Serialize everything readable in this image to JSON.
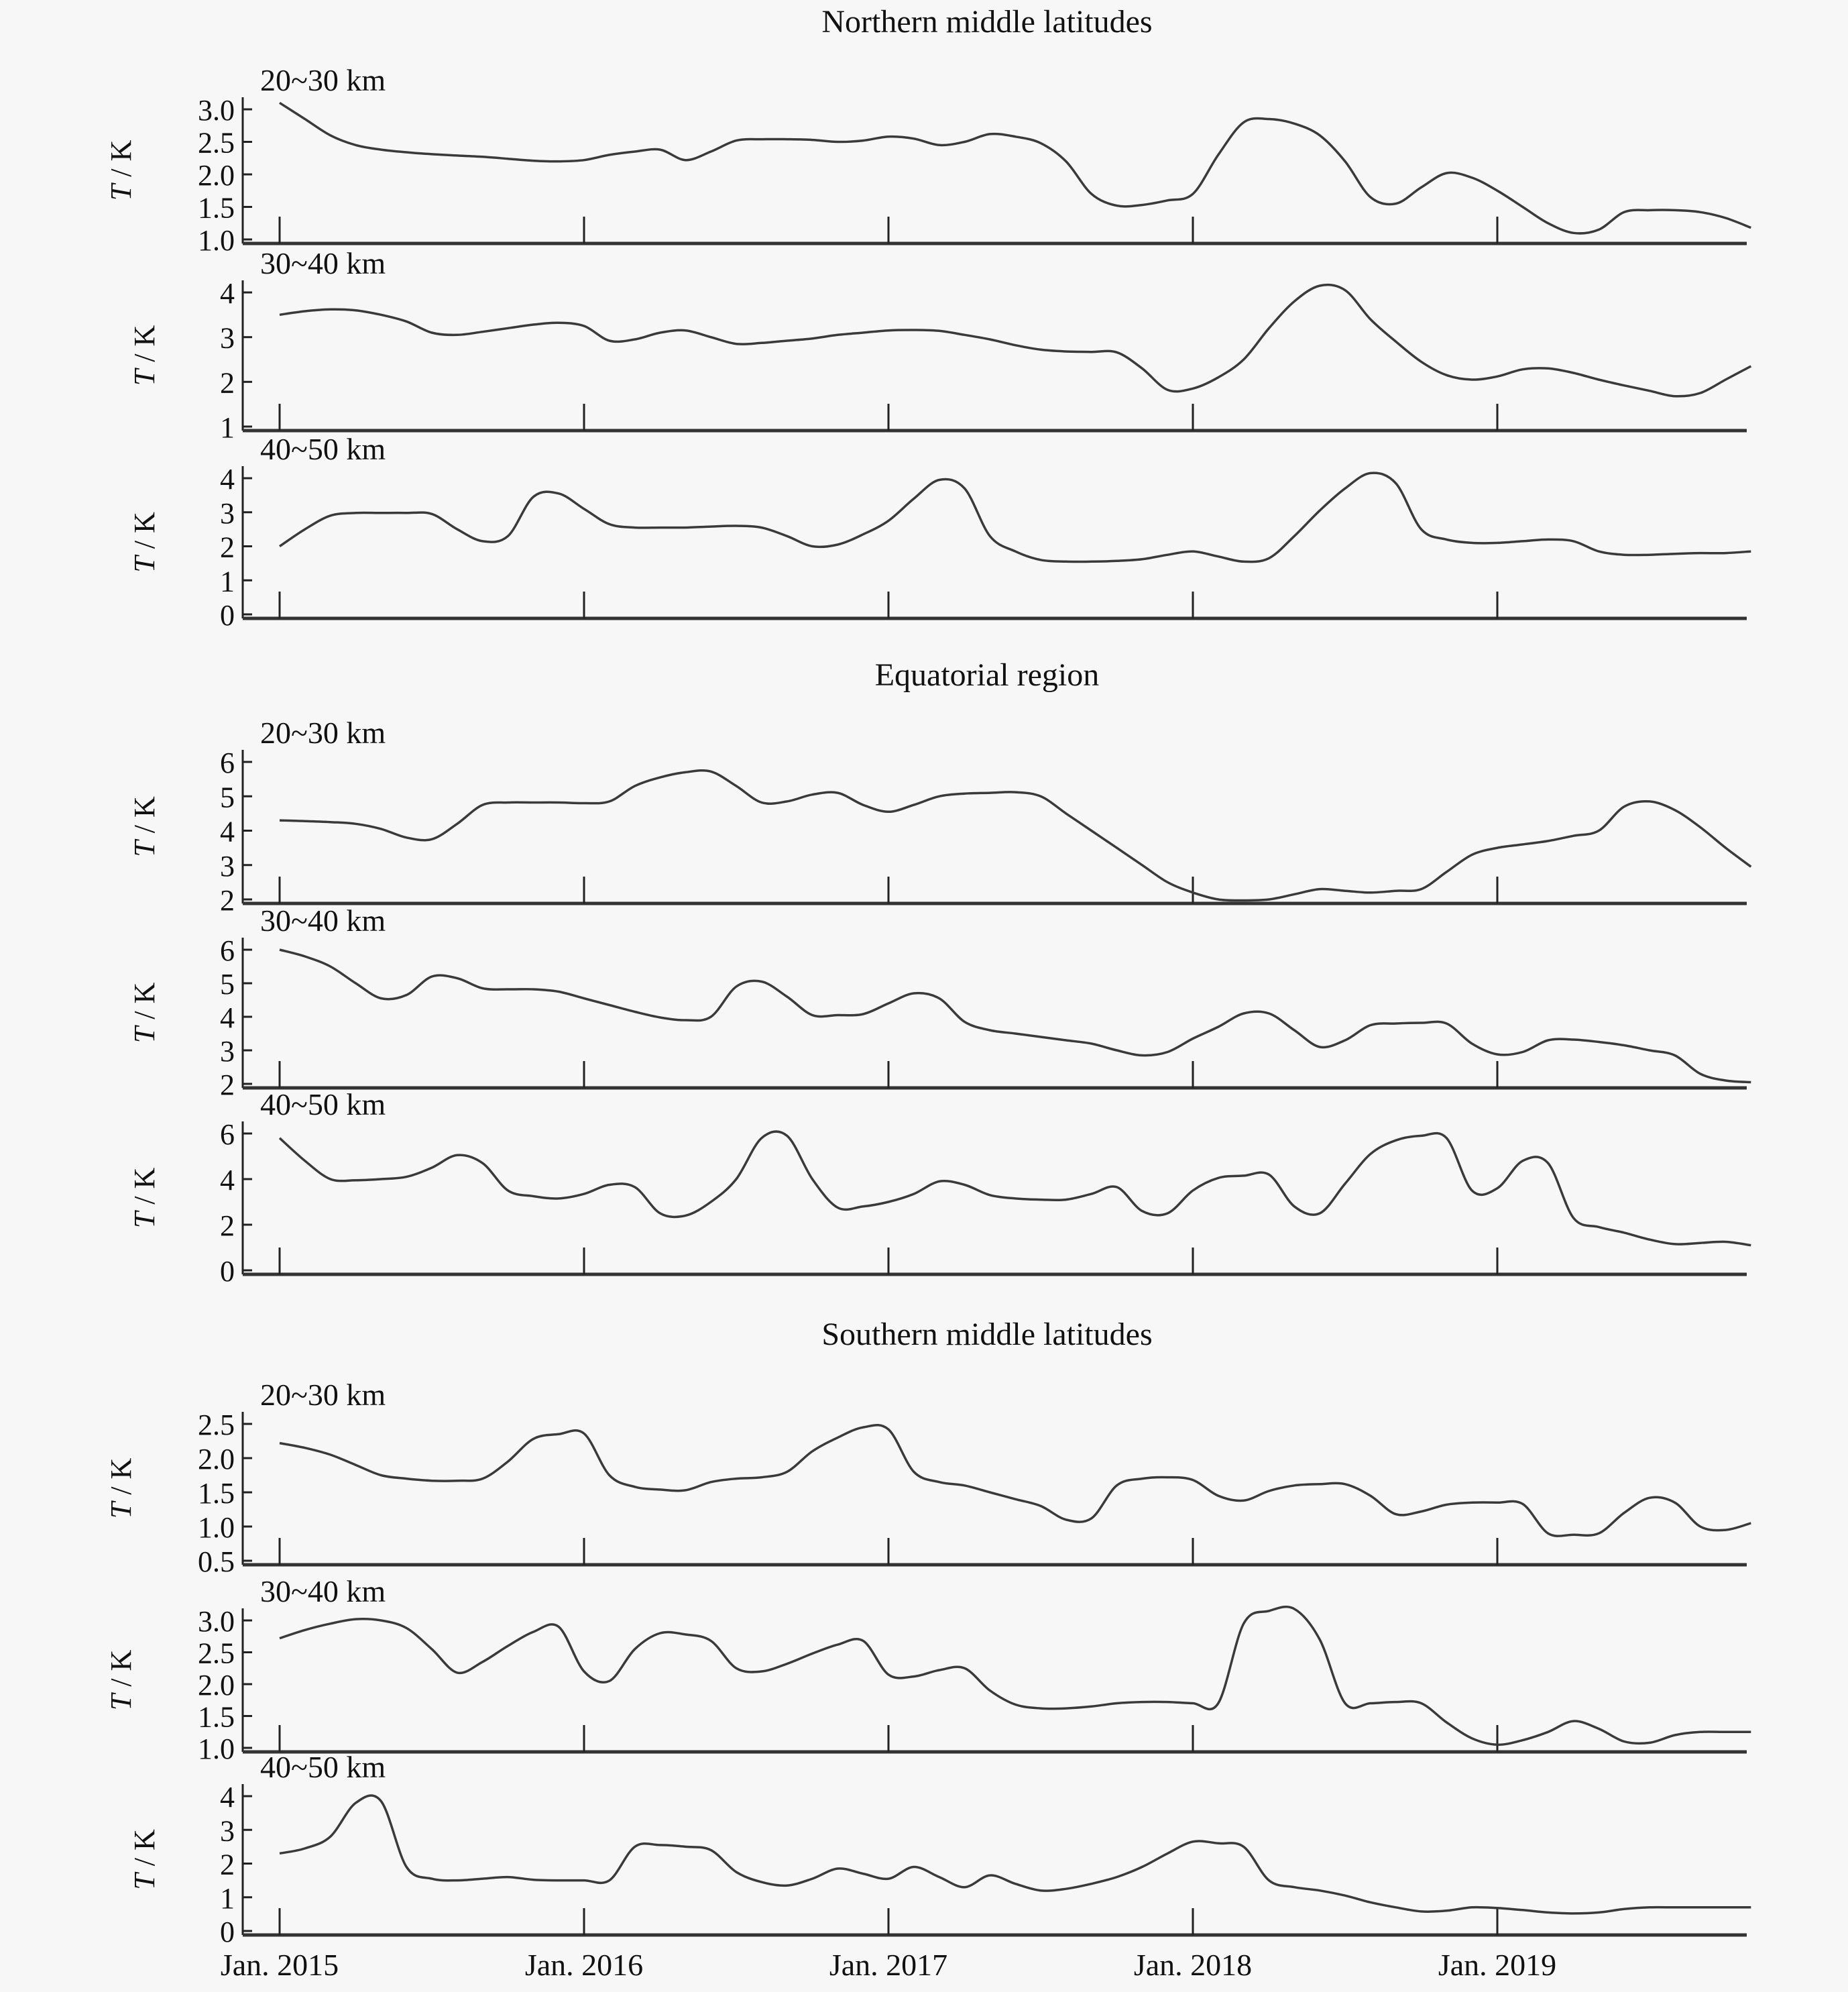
{
  "chart_data": {
    "type": "line",
    "xlabel": "",
    "ylabel": "T / K",
    "x_unit": "months since Jan. 2015",
    "xlim": [
      0,
      58
    ],
    "x_ticks": [
      0,
      12,
      24,
      36,
      48
    ],
    "x_tick_labels": [
      "Jan. 2015",
      "Jan. 2016",
      "Jan. 2017",
      "Jan. 2018",
      "Jan. 2019"
    ],
    "grid": false,
    "legend": "none",
    "sections": [
      {
        "title": "Northern middle latitudes",
        "panels": [
          {
            "label": "20~30 km",
            "ylim": [
              1.0,
              3.0
            ],
            "yticks": [
              1.0,
              1.5,
              2.0,
              2.5,
              3.0
            ],
            "ytick_labels": [
              "1.0",
              "1.5",
              "2.0",
              "2.5",
              "3.0"
            ],
            "values": [
              3.1,
              2.85,
              2.6,
              2.45,
              2.38,
              2.34,
              2.31,
              2.29,
              2.27,
              2.24,
              2.21,
              2.2,
              2.22,
              2.3,
              2.35,
              2.38,
              2.22,
              2.35,
              2.52,
              2.54,
              2.54,
              2.53,
              2.5,
              2.52,
              2.58,
              2.55,
              2.45,
              2.5,
              2.62,
              2.58,
              2.48,
              2.2,
              1.7,
              1.52,
              1.53,
              1.6,
              1.7,
              2.3,
              2.8,
              2.85,
              2.78,
              2.6,
              2.2,
              1.65,
              1.55,
              1.8,
              2.02,
              1.95,
              1.75,
              1.5,
              1.25,
              1.1,
              1.15,
              1.42,
              1.45,
              1.45,
              1.42,
              1.33,
              1.18
            ]
          },
          {
            "label": "30~40 km",
            "ylim": [
              1,
              4
            ],
            "yticks": [
              1,
              2,
              3,
              4
            ],
            "ytick_labels": [
              "1",
              "2",
              "3",
              "4"
            ],
            "values": [
              3.5,
              3.58,
              3.62,
              3.6,
              3.5,
              3.35,
              3.1,
              3.05,
              3.12,
              3.2,
              3.28,
              3.32,
              3.25,
              2.92,
              2.95,
              3.1,
              3.15,
              3.0,
              2.85,
              2.87,
              2.92,
              2.97,
              3.05,
              3.1,
              3.15,
              3.16,
              3.14,
              3.05,
              2.95,
              2.82,
              2.72,
              2.68,
              2.67,
              2.66,
              2.3,
              1.82,
              1.85,
              2.1,
              2.5,
              3.2,
              3.8,
              4.15,
              4.05,
              3.4,
              2.9,
              2.45,
              2.15,
              2.05,
              2.12,
              2.28,
              2.3,
              2.2,
              2.05,
              1.92,
              1.8,
              1.68,
              1.75,
              2.05,
              2.35
            ]
          },
          {
            "label": "40~50 km",
            "ylim": [
              0,
              4
            ],
            "yticks": [
              0,
              1,
              2,
              3,
              4
            ],
            "ytick_labels": [
              "0",
              "1",
              "2",
              "3",
              "4"
            ],
            "values": [
              2.0,
              2.5,
              2.9,
              2.98,
              2.98,
              2.98,
              2.95,
              2.5,
              2.15,
              2.3,
              3.45,
              3.55,
              3.1,
              2.65,
              2.55,
              2.55,
              2.55,
              2.58,
              2.6,
              2.55,
              2.3,
              2.0,
              2.05,
              2.35,
              2.75,
              3.4,
              3.95,
              3.7,
              2.3,
              1.85,
              1.6,
              1.55,
              1.55,
              1.57,
              1.62,
              1.75,
              1.85,
              1.7,
              1.55,
              1.65,
              2.3,
              3.05,
              3.7,
              4.15,
              3.85,
              2.5,
              2.2,
              2.1,
              2.1,
              2.15,
              2.2,
              2.15,
              1.85,
              1.75,
              1.75,
              1.78,
              1.8,
              1.8,
              1.85
            ]
          }
        ]
      },
      {
        "title": "Equatorial region",
        "panels": [
          {
            "label": "20~30 km",
            "ylim": [
              2,
              6
            ],
            "yticks": [
              2,
              3,
              4,
              5,
              6
            ],
            "ytick_labels": [
              "2",
              "3",
              "4",
              "5",
              "6"
            ],
            "values": [
              4.3,
              4.28,
              4.25,
              4.2,
              4.05,
              3.8,
              3.75,
              4.2,
              4.75,
              4.82,
              4.82,
              4.82,
              4.8,
              4.85,
              5.3,
              5.55,
              5.7,
              5.72,
              5.3,
              4.82,
              4.85,
              5.05,
              5.1,
              4.75,
              4.55,
              4.75,
              5.0,
              5.08,
              5.1,
              5.12,
              5.0,
              4.5,
              4.0,
              3.5,
              3.0,
              2.5,
              2.2,
              2.0,
              1.97,
              2.0,
              2.15,
              2.3,
              2.25,
              2.2,
              2.25,
              2.3,
              2.8,
              3.3,
              3.5,
              3.6,
              3.7,
              3.85,
              4.0,
              4.7,
              4.85,
              4.6,
              4.1,
              3.5,
              2.95
            ]
          },
          {
            "label": "30~40 km",
            "ylim": [
              2,
              6
            ],
            "yticks": [
              2,
              3,
              4,
              5,
              6
            ],
            "ytick_labels": [
              "2",
              "3",
              "4",
              "5",
              "6"
            ],
            "values": [
              6.0,
              5.8,
              5.5,
              5.0,
              4.55,
              4.65,
              5.2,
              5.15,
              4.85,
              4.82,
              4.82,
              4.75,
              4.55,
              4.35,
              4.15,
              3.98,
              3.9,
              4.0,
              4.9,
              5.05,
              4.6,
              4.05,
              4.05,
              4.08,
              4.4,
              4.7,
              4.55,
              3.85,
              3.6,
              3.5,
              3.4,
              3.3,
              3.2,
              3.0,
              2.85,
              2.95,
              3.35,
              3.7,
              4.1,
              4.1,
              3.6,
              3.1,
              3.3,
              3.75,
              3.8,
              3.82,
              3.8,
              3.2,
              2.88,
              2.95,
              3.3,
              3.32,
              3.25,
              3.15,
              3.0,
              2.85,
              2.3,
              2.1,
              2.05
            ]
          },
          {
            "label": "40~50 km",
            "ylim": [
              0,
              6
            ],
            "yticks": [
              0,
              2,
              4,
              6
            ],
            "ytick_labels": [
              "0",
              "2",
              "4",
              "6"
            ],
            "values": [
              5.8,
              4.8,
              4.0,
              3.95,
              4.0,
              4.1,
              4.5,
              5.05,
              4.7,
              3.5,
              3.25,
              3.15,
              3.35,
              3.75,
              3.65,
              2.5,
              2.4,
              3.0,
              4.0,
              5.8,
              5.9,
              4.0,
              2.75,
              2.8,
              3.0,
              3.35,
              3.9,
              3.75,
              3.3,
              3.15,
              3.1,
              3.1,
              3.35,
              3.65,
              2.6,
              2.5,
              3.5,
              4.05,
              4.15,
              4.2,
              2.8,
              2.5,
              3.8,
              5.1,
              5.7,
              5.9,
              5.8,
              3.5,
              3.6,
              4.8,
              4.7,
              2.3,
              1.9,
              1.65,
              1.35,
              1.15,
              1.2,
              1.25,
              1.1
            ]
          }
        ]
      },
      {
        "title": "Southern middle latitudes",
        "panels": [
          {
            "label": "20~30 km",
            "ylim": [
              0.5,
              2.5
            ],
            "yticks": [
              0.5,
              1.0,
              1.5,
              2.0,
              2.5
            ],
            "ytick_labels": [
              "0.5",
              "1.0",
              "1.5",
              "2.0",
              "2.5"
            ],
            "values": [
              2.22,
              2.15,
              2.05,
              1.9,
              1.75,
              1.7,
              1.67,
              1.67,
              1.7,
              1.95,
              2.28,
              2.35,
              2.36,
              1.75,
              1.58,
              1.54,
              1.53,
              1.65,
              1.7,
              1.72,
              1.8,
              2.1,
              2.3,
              2.45,
              2.42,
              1.8,
              1.65,
              1.6,
              1.5,
              1.4,
              1.3,
              1.1,
              1.12,
              1.6,
              1.7,
              1.72,
              1.68,
              1.45,
              1.38,
              1.52,
              1.6,
              1.62,
              1.62,
              1.45,
              1.18,
              1.22,
              1.32,
              1.35,
              1.35,
              1.33,
              0.9,
              0.88,
              0.9,
              1.2,
              1.42,
              1.35,
              1.0,
              0.95,
              1.05
            ]
          },
          {
            "label": "30~40 km",
            "ylim": [
              1.0,
              3.0
            ],
            "yticks": [
              1.0,
              1.5,
              2.0,
              2.5,
              3.0
            ],
            "ytick_labels": [
              "1.0",
              "1.5",
              "2.0",
              "2.5",
              "3.0"
            ],
            "values": [
              2.72,
              2.85,
              2.95,
              3.02,
              3.0,
              2.88,
              2.55,
              2.18,
              2.35,
              2.6,
              2.82,
              2.9,
              2.2,
              2.05,
              2.55,
              2.8,
              2.78,
              2.68,
              2.25,
              2.2,
              2.32,
              2.48,
              2.62,
              2.68,
              2.15,
              2.12,
              2.22,
              2.25,
              1.9,
              1.68,
              1.62,
              1.62,
              1.65,
              1.7,
              1.72,
              1.72,
              1.7,
              1.7,
              2.95,
              3.15,
              3.18,
              2.7,
              1.7,
              1.7,
              1.72,
              1.7,
              1.4,
              1.15,
              1.05,
              1.12,
              1.25,
              1.42,
              1.3,
              1.1,
              1.08,
              1.2,
              1.25,
              1.25,
              1.25
            ]
          },
          {
            "label": "40~50 km",
            "ylim": [
              0,
              4
            ],
            "yticks": [
              0,
              1,
              2,
              3,
              4
            ],
            "ytick_labels": [
              "0",
              "1",
              "2",
              "3",
              "4"
            ],
            "values": [
              2.3,
              2.45,
              2.8,
              3.8,
              3.85,
              1.9,
              1.55,
              1.5,
              1.55,
              1.6,
              1.52,
              1.5,
              1.5,
              1.5,
              2.5,
              2.55,
              2.5,
              2.4,
              1.75,
              1.45,
              1.35,
              1.55,
              1.85,
              1.7,
              1.55,
              1.9,
              1.6,
              1.3,
              1.65,
              1.4,
              1.2,
              1.25,
              1.4,
              1.6,
              1.9,
              2.3,
              2.65,
              2.6,
              2.5,
              1.5,
              1.3,
              1.2,
              1.05,
              0.85,
              0.7,
              0.58,
              0.6,
              0.7,
              0.68,
              0.62,
              0.55,
              0.52,
              0.55,
              0.65,
              0.7,
              0.7,
              0.7,
              0.7,
              0.7
            ]
          }
        ]
      }
    ]
  }
}
